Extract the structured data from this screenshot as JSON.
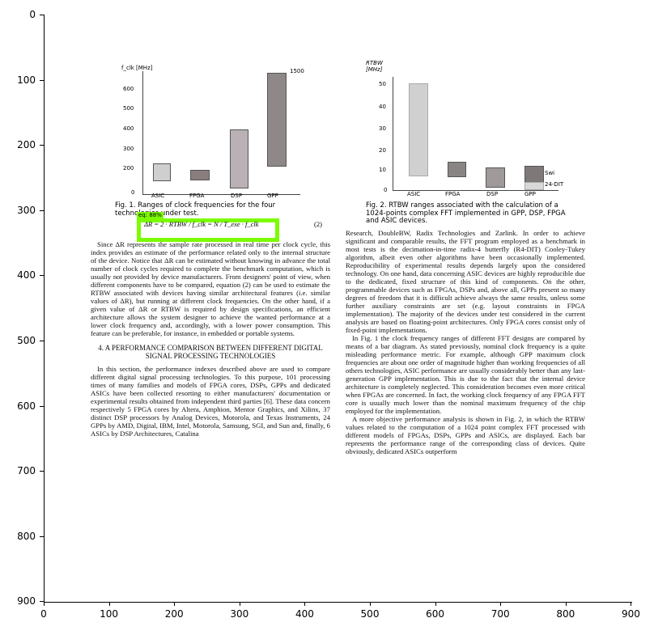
{
  "axes": {
    "x_ticks": [
      "0",
      "100",
      "200",
      "300",
      "400",
      "500",
      "600",
      "700",
      "800",
      "900"
    ],
    "y_ticks": [
      "0",
      "100",
      "200",
      "300",
      "400",
      "500",
      "600",
      "700",
      "800",
      "900"
    ]
  },
  "detection": {
    "label": "eq: 88%"
  },
  "figure1": {
    "ylabel": "f_clk [MHz]",
    "y_ticks": [
      "600",
      "500",
      "400",
      "300",
      "200",
      "100",
      "0"
    ],
    "top_value": "1500",
    "categories": [
      "ASIC",
      "FPGA",
      "DSP",
      "GPP"
    ],
    "caption": "Fig. 1. Ranges of clock frequencies for the four technologies under test."
  },
  "figure2": {
    "ylabel": "RTBW [MHz]",
    "y_ticks": [
      "50",
      "40",
      "30",
      "20",
      "10",
      "0"
    ],
    "categories": [
      "ASIC",
      "FPGA",
      "DSP",
      "GPP"
    ],
    "legend": [
      "Swi",
      "24-DIT"
    ],
    "caption": "Fig. 2. RTBW ranges associated with the calculation of a 1024-points complex FFT implemented in GPP, DSP, FPGA and ASIC devices."
  },
  "equation": {
    "text": "ΔR = 2 · RTBW / f_clk = N / T_exe · f_clk",
    "number": "(2)"
  },
  "left_column": {
    "para1": "Since ΔR represents the sample rate processed in real time per clock cycle, this index provides an estimate of the performance related only to the internal structure of the device. Notice that ΔR can be estimated without knowing in advance the total number of clock cycles required to complete the benchmark computation, which is usually not provided by device manufacturers. From designers' point of view, when different components have to be compared, equation (2) can be used to estimate the RTBW associated with devices having similar architectural features (i.e. similar values of ΔR), but running at different clock frequencies. On the other hand, if a given value of ΔR or RTBW is required by design specifications, an efficient architecture allows the system designer to achieve the wanted performance at a lower clock frequency and, accordingly, with a lower power consumption. This feature can be preferable, for instance, in embedded or portable systems.",
    "heading": "4. A PERFORMANCE COMPARISON BETWEEN DIFFERENT DIGITAL SIGNAL PROCESSING TECHNOLOGIES",
    "para2": "In this section, the performance indexes described above are used to compare different digital signal processing technologies. To this purpose, 101 processing times of many families and models of FPGA cores, DSPs, GPPs and dedicated ASICs have been collected resorting to either manufacturers' documentation or experimental results obtained from independent third parties [6]. These data concern respectively 5 FPGA cores by Altera, Amphion, Mentor Graphics, and Xilinx, 37 distinct DSP processors by Analog Devices, Motorola, and Texas Instruments, 24 GPPs by AMD, Digital, IBM, Intel, Motorola, Samsung, SGI, and Sun and, finally, 6 ASICs by DSP Architectures, Catalina"
  },
  "right_column": {
    "para1": "Research, DoubleBW, Radix Technologies and Zarlink. In order to achieve significant and comparable results, the FFT program employed as a benchmark in most tests is the decimation-in-time radix-4 butterfly (R4-DIT) Cooley-Tukey algorithm, albeit even other algorithms have been occasionally implemented. Reproducibility of experimental results depends largely upon the considered technology. On one hand, data concerning ASIC devices are highly reproducible due to the dedicated, fixed structure of this kind of components. On the other, programmable devices such as FPGAs, DSPs and, above all, GPPs present so many degrees of freedom that it is difficult achieve always the same results, unless some further auxiliary constraints are set (e.g. layout constraints in FPGA implementation). The majority of the devices under test considered in the current analysis are based on floating-point architectures. Only FPGA cores consist only of fixed-point implementations.",
    "para2": "In Fig. 1 the clock frequency ranges of different FFT designs are compared by means of a bar diagram. As stated previously, nominal clock frequency is a quite misleading performance metric. For example, although GPP maximum clock frequencies are about one order of magnitude higher than working frequencies of all others technologies, ASIC performance are usually considerably better than any last-generation GPP implementation. This is due to the fact that the internal device architecture is completely neglected. This consideration becomes even more critical when FPGAs are concerned. In fact, the working clock frequency of any FPGA FFT core is usually much lower than the nominal maximum frequency of the chip employed for the implementation.",
    "para3": "A more objective performance analysis is shown in Fig. 2, in which the RTBW values related to the computation of a 1024 point complex FFT processed with different models of FPGAs, DSPs, GPPs and ASICs, are displayed. Each bar represents the performance range of the corresponding class of devices. Quite obviously, dedicated ASICs outperform"
  }
}
